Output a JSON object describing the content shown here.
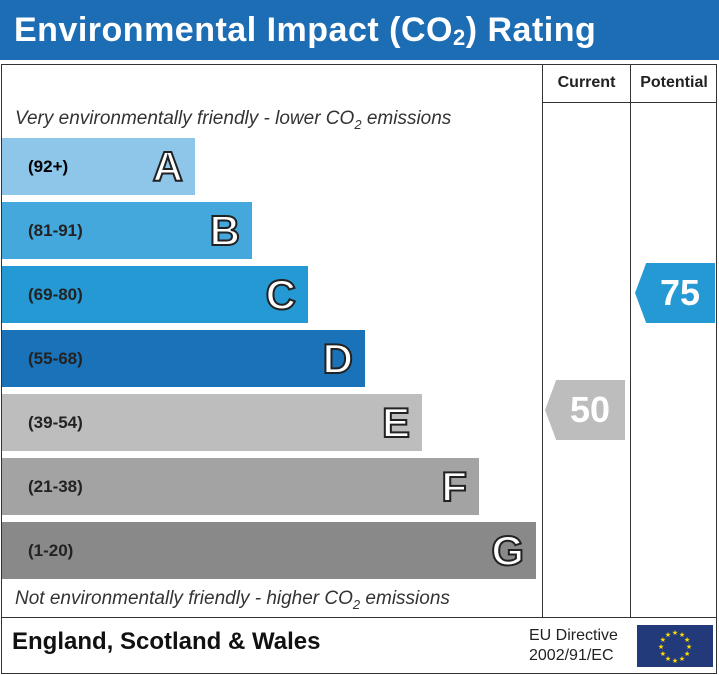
{
  "title_main": "Environmental Impact (CO",
  "title_sub": "2",
  "title_end": ") Rating",
  "columns": {
    "current": "Current",
    "potential": "Potential"
  },
  "top_note": {
    "pre": "Very environmentally friendly - lower CO",
    "sub": "2",
    "post": " emissions"
  },
  "bottom_note": {
    "pre": "Not environmentally friendly - higher CO",
    "sub": "2",
    "post": " emissions"
  },
  "footer": {
    "country": "England, Scotland & Wales",
    "directive_line1": "EU Directive",
    "directive_line2": "2002/91/EC",
    "flag_icon": "eu-flag-icon"
  },
  "chart_data": {
    "type": "bar",
    "categories": [
      "A",
      "B",
      "C",
      "D",
      "E",
      "F",
      "G"
    ],
    "ranges": [
      "(92+)",
      "(81-91)",
      "(69-80)",
      "(55-68)",
      "(39-54)",
      "(21-38)",
      "(1-20)"
    ],
    "colors": [
      "#8dc6e8",
      "#45a8dc",
      "#2599d3",
      "#1a72b8",
      "#bdbdbd",
      "#a3a3a3",
      "#898989"
    ],
    "current": {
      "value": 50,
      "band": "E",
      "color": "#bdbdbd"
    },
    "potential": {
      "value": 75,
      "band": "C",
      "color": "#2599d3"
    }
  }
}
